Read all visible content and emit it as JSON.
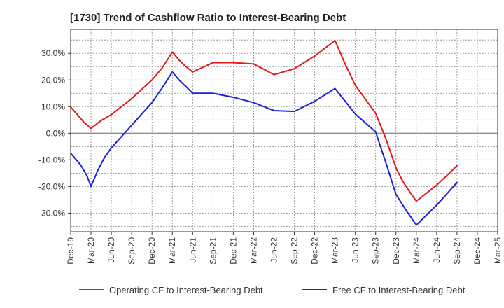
{
  "chart_data": {
    "type": "line",
    "title": "[1730]  Trend of Cashflow Ratio to Interest-Bearing Debt",
    "xlabel": "",
    "ylabel": "",
    "ylim": [
      -37,
      39
    ],
    "y_ticks": [
      -30,
      -20,
      -10,
      0,
      10,
      20,
      30
    ],
    "y_tick_labels": [
      "-30.0%",
      "-20.0%",
      "-10.0%",
      "0.0%",
      "10.0%",
      "20.0%",
      "30.0%"
    ],
    "x_tick_labels": [
      "Dec-19",
      "Mar-20",
      "Jun-20",
      "Sep-20",
      "Dec-20",
      "Mar-21",
      "Jun-21",
      "Sep-21",
      "Dec-21",
      "Mar-22",
      "Jun-22",
      "Sep-22",
      "Dec-22",
      "Mar-23",
      "Jun-23",
      "Sep-23",
      "Dec-23",
      "Mar-24",
      "Jun-24",
      "Sep-24",
      "Dec-24",
      "Mar-25"
    ],
    "grid": true,
    "legend_position": "bottom",
    "series": [
      {
        "name": "Operating CF to Interest-Bearing Debt",
        "color": "#e31a1c",
        "points": [
          [
            0,
            9.8
          ],
          [
            0.33,
            7.0
          ],
          [
            0.67,
            4.0
          ],
          [
            1,
            1.8
          ],
          [
            1.5,
            4.8
          ],
          [
            2,
            7.0
          ],
          [
            3,
            13.0
          ],
          [
            4,
            20.0
          ],
          [
            4.5,
            24.5
          ],
          [
            5,
            30.5
          ],
          [
            5.33,
            27.5
          ],
          [
            5.67,
            25.0
          ],
          [
            6,
            23.0
          ],
          [
            7,
            26.5
          ],
          [
            8,
            26.5
          ],
          [
            9,
            26.0
          ],
          [
            10,
            22.0
          ],
          [
            11,
            24.2
          ],
          [
            12,
            29.0
          ],
          [
            13,
            34.8
          ],
          [
            13.5,
            26.0
          ],
          [
            14,
            18.0
          ],
          [
            15,
            7.5
          ],
          [
            15.5,
            -2.0
          ],
          [
            16,
            -13.0
          ],
          [
            16.33,
            -18.0
          ],
          [
            16.67,
            -22.0
          ],
          [
            17,
            -25.5
          ],
          [
            18,
            -19.5
          ],
          [
            19,
            -12.2
          ]
        ]
      },
      {
        "name": "Free CF to Interest-Bearing Debt",
        "color": "#1f1fd6",
        "points": [
          [
            0,
            -7.5
          ],
          [
            0.5,
            -12.0
          ],
          [
            0.8,
            -16.0
          ],
          [
            1,
            -20.0
          ],
          [
            1.33,
            -14.0
          ],
          [
            1.67,
            -9.0
          ],
          [
            2,
            -5.5
          ],
          [
            3,
            3.0
          ],
          [
            4,
            11.5
          ],
          [
            4.5,
            17.0
          ],
          [
            5,
            23.0
          ],
          [
            5.33,
            20.0
          ],
          [
            5.67,
            17.5
          ],
          [
            6,
            15.0
          ],
          [
            7,
            15.0
          ],
          [
            8,
            13.5
          ],
          [
            9,
            11.5
          ],
          [
            10,
            8.5
          ],
          [
            11,
            8.2
          ],
          [
            12,
            12.0
          ],
          [
            13,
            16.8
          ],
          [
            13.5,
            12.0
          ],
          [
            14,
            7.2
          ],
          [
            15,
            0.5
          ],
          [
            15.5,
            -11.0
          ],
          [
            16,
            -23.0
          ],
          [
            16.5,
            -29.0
          ],
          [
            17,
            -34.5
          ],
          [
            18,
            -27.0
          ],
          [
            19,
            -18.5
          ]
        ]
      }
    ]
  }
}
